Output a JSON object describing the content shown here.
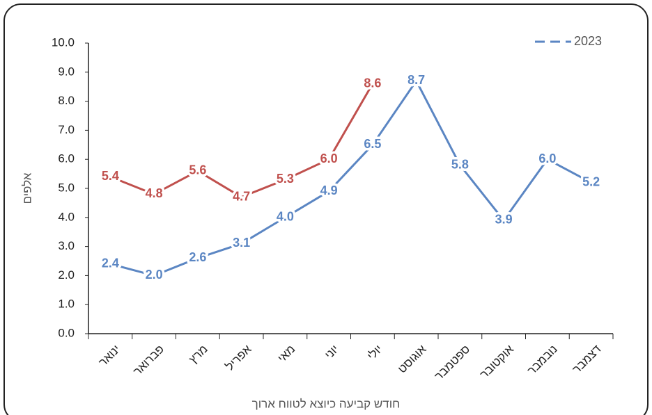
{
  "chart_data": {
    "type": "line",
    "y_label": "אלפים",
    "x_label": "חודש קביעה כיוצא לטווח ארוך",
    "categories": [
      "ינואר",
      "פברואר",
      "מרץ",
      "אפריל",
      "מאי",
      "יוני",
      "יולי",
      "אוגוסט",
      "ספטמבר",
      "אוקטובר",
      "נובמבר",
      "דצמבר"
    ],
    "series": [
      {
        "name": "2023",
        "color": "#5b86c3",
        "values": [
          2.4,
          2.0,
          2.6,
          3.1,
          4.0,
          4.9,
          6.5,
          8.7,
          5.8,
          3.9,
          6.0,
          5.2
        ],
        "value_labels": [
          "2.4",
          "2.0",
          "2.6",
          "3.1",
          "4.0",
          "4.9",
          "6.5",
          "8.7",
          "5.8",
          "3.9",
          "6.0",
          "5.2"
        ]
      },
      {
        "color": "#c0504d",
        "values": [
          5.4,
          4.8,
          5.6,
          4.7,
          5.3,
          6.0,
          8.6,
          null,
          null,
          null,
          null,
          null
        ],
        "value_labels": [
          "5.4",
          "4.8",
          "5.6",
          "4.7",
          "5.3",
          "6.0",
          "8.6",
          null,
          null,
          null,
          null,
          null
        ]
      }
    ],
    "ylim": [
      0,
      10
    ],
    "yticks": [
      {
        "value": 0,
        "label": "0.0"
      },
      {
        "value": 1,
        "label": "1.0"
      },
      {
        "value": 2,
        "label": "2.0"
      },
      {
        "value": 3,
        "label": "3.0"
      },
      {
        "value": 4,
        "label": "4.0"
      },
      {
        "value": 5,
        "label": "5.0"
      },
      {
        "value": 6,
        "label": "6.0"
      },
      {
        "value": 7,
        "label": "7.0"
      },
      {
        "value": 8,
        "label": "8.0"
      },
      {
        "value": 9,
        "label": "9.0"
      },
      {
        "value": 10,
        "label": "10.0"
      }
    ],
    "legend": "top-right"
  }
}
